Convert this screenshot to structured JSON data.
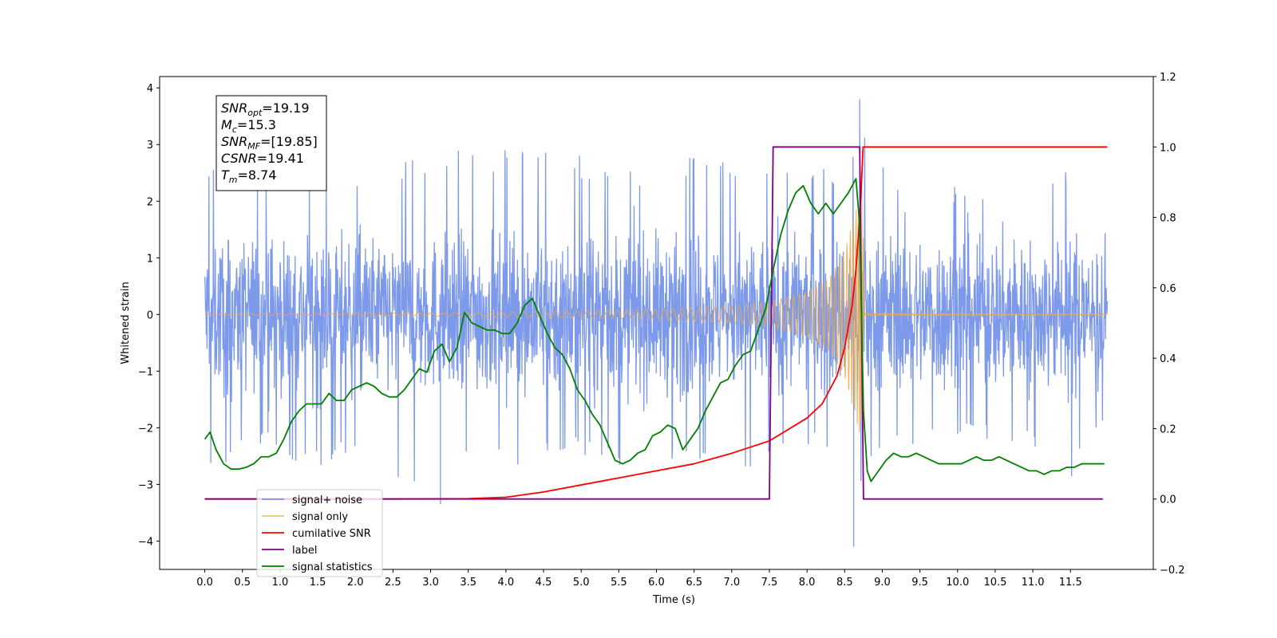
{
  "chart_data": {
    "type": "line",
    "xlabel": "Time (s)",
    "ylabel": "Whitened strain",
    "xlim": [
      -0.6,
      12.6
    ],
    "ylim": [
      -4.5,
      4.2
    ],
    "y2lim": [
      -0.2,
      1.2
    ],
    "x_ticks": [
      "0.0",
      "0.5",
      "1.0",
      "1.5",
      "2.0",
      "2.5",
      "3.0",
      "3.5",
      "4.0",
      "4.5",
      "5.0",
      "5.5",
      "6.0",
      "6.5",
      "7.0",
      "7.5",
      "8.0",
      "8.5",
      "9.0",
      "9.5",
      "10.0",
      "10.5",
      "11.0",
      "11.5"
    ],
    "y_ticks": [
      "4",
      "3",
      "2",
      "1",
      "0",
      "−1",
      "−2",
      "−3",
      "−4"
    ],
    "y2_ticks": [
      "1.2",
      "1.0",
      "0.8",
      "0.6",
      "0.4",
      "0.2",
      "0.0",
      "−0.2"
    ],
    "grid": false,
    "legend_position": "lower-left",
    "annotation": [
      {
        "base": "SNR",
        "sub": "opt",
        "value": "=19.19"
      },
      {
        "base": "M",
        "sub": "c",
        "value": "=15.3"
      },
      {
        "base": "SNR",
        "sub": "MF",
        "value": "=[19.85]"
      },
      {
        "base": "CSNR",
        "sub": "",
        "value": "=19.41"
      },
      {
        "base": "T",
        "sub": "m",
        "value": "=8.74"
      }
    ],
    "series": [
      {
        "name": "signal+ noise",
        "color": "#7694e8",
        "axis": "left",
        "kind": "noise",
        "x_range": [
          0.0,
          11.99
        ],
        "envelope_upper": [
          [
            0.0,
            2.85
          ],
          [
            0.5,
            2.4
          ],
          [
            1.0,
            2.6
          ],
          [
            1.5,
            2.7
          ],
          [
            2.0,
            2.5
          ],
          [
            3.0,
            2.8
          ],
          [
            3.5,
            3.0
          ],
          [
            4.0,
            2.9
          ],
          [
            4.5,
            3.0
          ],
          [
            5.0,
            2.8
          ],
          [
            5.5,
            2.6
          ],
          [
            6.0,
            2.5
          ],
          [
            6.5,
            2.8
          ],
          [
            7.0,
            2.9
          ],
          [
            7.5,
            2.6
          ],
          [
            8.0,
            2.7
          ],
          [
            8.5,
            2.5
          ],
          [
            8.65,
            3.05
          ],
          [
            8.7,
            3.8
          ],
          [
            9.0,
            2.6
          ],
          [
            10.0,
            2.3
          ],
          [
            11.0,
            2.3
          ],
          [
            11.5,
            2.6
          ],
          [
            11.99,
            2.3
          ]
        ],
        "envelope_lower": [
          [
            0.0,
            -2.8
          ],
          [
            0.5,
            -2.6
          ],
          [
            1.0,
            -2.3
          ],
          [
            1.3,
            -2.8
          ],
          [
            2.0,
            -2.4
          ],
          [
            3.1,
            -3.35
          ],
          [
            3.5,
            -2.6
          ],
          [
            4.0,
            -2.7
          ],
          [
            5.0,
            -2.5
          ],
          [
            5.5,
            -2.7
          ],
          [
            6.0,
            -2.7
          ],
          [
            7.0,
            -2.9
          ],
          [
            7.5,
            -2.7
          ],
          [
            8.0,
            -2.4
          ],
          [
            8.5,
            -2.9
          ],
          [
            8.62,
            -4.1
          ],
          [
            8.7,
            -3.0
          ],
          [
            9.0,
            -2.5
          ],
          [
            10.0,
            -2.2
          ],
          [
            11.0,
            -2.4
          ],
          [
            11.5,
            -2.9
          ],
          [
            11.99,
            -2.0
          ]
        ],
        "typical_amplitude": 1.2
      },
      {
        "name": "signal only",
        "color": "#e9a94c",
        "axis": "left",
        "kind": "chirp",
        "t_merger": 8.74,
        "x_range": [
          0.0,
          11.99
        ],
        "amplitude": [
          [
            0.0,
            0.01
          ],
          [
            3.0,
            0.03
          ],
          [
            5.0,
            0.06
          ],
          [
            6.0,
            0.09
          ],
          [
            7.0,
            0.15
          ],
          [
            7.5,
            0.22
          ],
          [
            8.0,
            0.4
          ],
          [
            8.3,
            0.65
          ],
          [
            8.5,
            1.1
          ],
          [
            8.6,
            1.6
          ],
          [
            8.7,
            2.1
          ],
          [
            8.74,
            2.3
          ],
          [
            8.76,
            0.02
          ],
          [
            11.99,
            0.01
          ]
        ]
      },
      {
        "name": "cumilative SNR",
        "color": "#ff0000",
        "axis": "right",
        "points": [
          [
            0.0,
            0.0
          ],
          [
            2.5,
            0.0
          ],
          [
            3.5,
            0.001
          ],
          [
            4.0,
            0.005
          ],
          [
            4.5,
            0.02
          ],
          [
            5.0,
            0.04
          ],
          [
            5.5,
            0.06
          ],
          [
            6.0,
            0.08
          ],
          [
            6.5,
            0.1
          ],
          [
            7.0,
            0.13
          ],
          [
            7.5,
            0.165
          ],
          [
            8.0,
            0.23
          ],
          [
            8.2,
            0.27
          ],
          [
            8.4,
            0.35
          ],
          [
            8.5,
            0.43
          ],
          [
            8.6,
            0.55
          ],
          [
            8.65,
            0.65
          ],
          [
            8.7,
            0.8
          ],
          [
            8.72,
            0.88
          ],
          [
            8.745,
            1.0
          ],
          [
            11.99,
            1.0
          ]
        ]
      },
      {
        "name": "label",
        "color": "#800080",
        "axis": "right",
        "points": [
          [
            0.0,
            0.0
          ],
          [
            7.5,
            0.0
          ],
          [
            7.55,
            1.0
          ],
          [
            8.7,
            1.0
          ],
          [
            8.75,
            0.0
          ],
          [
            11.93,
            0.0
          ]
        ]
      },
      {
        "name": "signal statistics",
        "color": "#007f00",
        "axis": "right",
        "points": [
          [
            0.0,
            0.17
          ],
          [
            0.07,
            0.19
          ],
          [
            0.15,
            0.14
          ],
          [
            0.25,
            0.1
          ],
          [
            0.35,
            0.085
          ],
          [
            0.45,
            0.085
          ],
          [
            0.55,
            0.09
          ],
          [
            0.65,
            0.1
          ],
          [
            0.75,
            0.12
          ],
          [
            0.85,
            0.12
          ],
          [
            0.95,
            0.13
          ],
          [
            1.05,
            0.17
          ],
          [
            1.15,
            0.22
          ],
          [
            1.25,
            0.25
          ],
          [
            1.35,
            0.27
          ],
          [
            1.45,
            0.27
          ],
          [
            1.55,
            0.27
          ],
          [
            1.65,
            0.3
          ],
          [
            1.75,
            0.28
          ],
          [
            1.85,
            0.28
          ],
          [
            1.95,
            0.31
          ],
          [
            2.05,
            0.32
          ],
          [
            2.15,
            0.33
          ],
          [
            2.25,
            0.32
          ],
          [
            2.35,
            0.3
          ],
          [
            2.45,
            0.29
          ],
          [
            2.55,
            0.29
          ],
          [
            2.65,
            0.31
          ],
          [
            2.75,
            0.34
          ],
          [
            2.85,
            0.37
          ],
          [
            2.95,
            0.36
          ],
          [
            3.05,
            0.42
          ],
          [
            3.15,
            0.44
          ],
          [
            3.25,
            0.39
          ],
          [
            3.35,
            0.43
          ],
          [
            3.45,
            0.53
          ],
          [
            3.55,
            0.5
          ],
          [
            3.65,
            0.49
          ],
          [
            3.75,
            0.48
          ],
          [
            3.85,
            0.48
          ],
          [
            3.95,
            0.47
          ],
          [
            4.05,
            0.47
          ],
          [
            4.15,
            0.5
          ],
          [
            4.25,
            0.55
          ],
          [
            4.35,
            0.57
          ],
          [
            4.45,
            0.52
          ],
          [
            4.55,
            0.47
          ],
          [
            4.65,
            0.43
          ],
          [
            4.75,
            0.41
          ],
          [
            4.85,
            0.37
          ],
          [
            4.95,
            0.31
          ],
          [
            5.05,
            0.28
          ],
          [
            5.15,
            0.24
          ],
          [
            5.25,
            0.21
          ],
          [
            5.35,
            0.16
          ],
          [
            5.45,
            0.11
          ],
          [
            5.55,
            0.1
          ],
          [
            5.65,
            0.11
          ],
          [
            5.75,
            0.13
          ],
          [
            5.85,
            0.14
          ],
          [
            5.95,
            0.18
          ],
          [
            6.05,
            0.19
          ],
          [
            6.15,
            0.21
          ],
          [
            6.25,
            0.2
          ],
          [
            6.35,
            0.14
          ],
          [
            6.45,
            0.17
          ],
          [
            6.55,
            0.2
          ],
          [
            6.65,
            0.25
          ],
          [
            6.75,
            0.29
          ],
          [
            6.85,
            0.33
          ],
          [
            6.95,
            0.34
          ],
          [
            7.05,
            0.38
          ],
          [
            7.15,
            0.41
          ],
          [
            7.25,
            0.42
          ],
          [
            7.35,
            0.48
          ],
          [
            7.45,
            0.54
          ],
          [
            7.55,
            0.65
          ],
          [
            7.65,
            0.75
          ],
          [
            7.75,
            0.82
          ],
          [
            7.85,
            0.87
          ],
          [
            7.95,
            0.89
          ],
          [
            8.05,
            0.84
          ],
          [
            8.15,
            0.81
          ],
          [
            8.25,
            0.84
          ],
          [
            8.35,
            0.81
          ],
          [
            8.45,
            0.84
          ],
          [
            8.55,
            0.87
          ],
          [
            8.65,
            0.91
          ],
          [
            8.7,
            0.78
          ],
          [
            8.75,
            0.25
          ],
          [
            8.8,
            0.08
          ],
          [
            8.85,
            0.05
          ],
          [
            8.95,
            0.08
          ],
          [
            9.05,
            0.11
          ],
          [
            9.15,
            0.13
          ],
          [
            9.25,
            0.12
          ],
          [
            9.35,
            0.12
          ],
          [
            9.45,
            0.13
          ],
          [
            9.55,
            0.12
          ],
          [
            9.65,
            0.11
          ],
          [
            9.75,
            0.1
          ],
          [
            9.85,
            0.1
          ],
          [
            9.95,
            0.1
          ],
          [
            10.05,
            0.1
          ],
          [
            10.15,
            0.11
          ],
          [
            10.25,
            0.12
          ],
          [
            10.35,
            0.11
          ],
          [
            10.45,
            0.11
          ],
          [
            10.55,
            0.12
          ],
          [
            10.65,
            0.11
          ],
          [
            10.75,
            0.1
          ],
          [
            10.85,
            0.09
          ],
          [
            10.95,
            0.08
          ],
          [
            11.05,
            0.08
          ],
          [
            11.15,
            0.07
          ],
          [
            11.25,
            0.08
          ],
          [
            11.35,
            0.08
          ],
          [
            11.45,
            0.09
          ],
          [
            11.55,
            0.09
          ],
          [
            11.65,
            0.1
          ],
          [
            11.75,
            0.1
          ],
          [
            11.85,
            0.1
          ],
          [
            11.95,
            0.1
          ]
        ]
      }
    ],
    "legend": [
      {
        "label": "signal+ noise",
        "color": "#7694e8"
      },
      {
        "label": "signal only",
        "color": "#f5c37a"
      },
      {
        "label": "cumilative SNR",
        "color": "#ff0000"
      },
      {
        "label": "label",
        "color": "#800080"
      },
      {
        "label": "signal statistics",
        "color": "#007f00"
      }
    ]
  }
}
